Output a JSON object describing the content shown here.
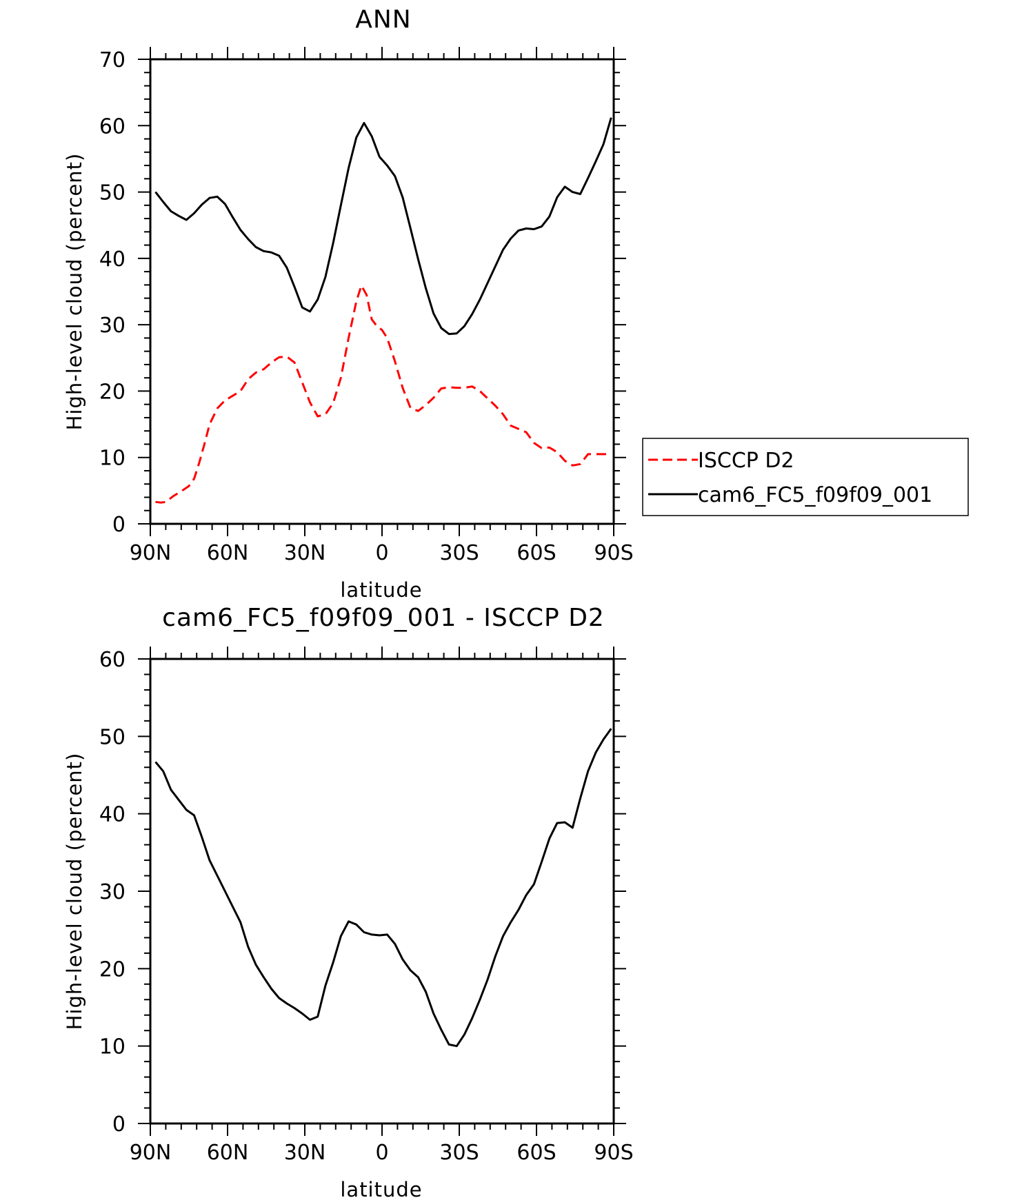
{
  "chart_data": [
    {
      "type": "line",
      "title": "ANN",
      "xlabel": "latitude",
      "ylabel": "High-level cloud (percent)",
      "xlim": [
        90,
        -90
      ],
      "ylim": [
        0,
        70
      ],
      "yticks": [
        0,
        10,
        20,
        30,
        40,
        50,
        60,
        70
      ],
      "xticks": [
        {
          "value": 90,
          "label": "90N"
        },
        {
          "value": 60,
          "label": "60N"
        },
        {
          "value": 30,
          "label": "30N"
        },
        {
          "value": 0,
          "label": "0"
        },
        {
          "value": -30,
          "label": "30S"
        },
        {
          "value": -60,
          "label": "60S"
        },
        {
          "value": -90,
          "label": "90S"
        }
      ],
      "legend": {
        "position": "right"
      },
      "series": [
        {
          "name": "ISCCP D2",
          "color": "#ff0000",
          "dash": "dashed",
          "x": [
            88,
            86,
            84,
            81,
            78,
            75,
            73,
            71,
            69,
            67,
            64,
            61,
            58,
            55,
            52,
            49,
            46,
            43,
            40,
            37,
            34,
            31,
            28,
            25,
            22,
            19,
            16,
            13,
            10,
            8,
            6,
            4,
            2,
            0,
            -2,
            -5,
            -8,
            -11,
            -14,
            -17,
            -20,
            -23,
            -26,
            -29,
            -32,
            -35,
            -38,
            -41,
            -44,
            -47,
            -50,
            -53,
            -56,
            -59,
            -62,
            -65,
            -68,
            -71,
            -74,
            -77,
            -80,
            -83,
            -85,
            -87,
            -89
          ],
          "y": [
            3.3,
            3.2,
            3.3,
            4.2,
            4.9,
            5.7,
            6.8,
            9.2,
            12.0,
            15.0,
            17.4,
            18.6,
            19.3,
            20.0,
            21.8,
            22.8,
            23.3,
            24.3,
            25.1,
            25.2,
            24.3,
            21.3,
            18.3,
            16.2,
            16.5,
            18.2,
            22.0,
            28.0,
            33.5,
            35.9,
            34.5,
            30.8,
            29.8,
            29.2,
            28.0,
            24.5,
            20.5,
            17.5,
            17.0,
            17.9,
            19.0,
            20.4,
            20.6,
            20.5,
            20.5,
            20.7,
            20.0,
            18.9,
            17.8,
            16.5,
            14.8,
            14.3,
            13.8,
            12.2,
            11.4,
            11.5,
            10.8,
            9.5,
            8.8,
            9.0,
            10.5,
            10.5,
            10.5,
            10.5,
            10.5
          ]
        },
        {
          "name": "cam6_FC5_f09f09_001",
          "color": "#000000",
          "dash": "solid",
          "x": [
            88,
            85,
            82,
            79,
            76,
            73,
            70,
            67,
            64,
            61,
            58,
            55,
            52,
            49,
            46,
            43,
            40,
            37,
            34,
            31,
            28,
            25,
            22,
            19,
            16,
            13,
            10,
            7,
            4,
            1,
            -2,
            -5,
            -8,
            -11,
            -14,
            -17,
            -20,
            -23,
            -26,
            -29,
            -32,
            -35,
            -38,
            -41,
            -44,
            -47,
            -50,
            -53,
            -56,
            -59,
            -62,
            -65,
            -68,
            -71,
            -74,
            -77,
            -80,
            -83,
            -86,
            -89
          ],
          "y": [
            50.0,
            48.5,
            47.1,
            46.4,
            45.8,
            46.8,
            48.1,
            49.1,
            49.3,
            48.2,
            46.2,
            44.3,
            42.9,
            41.7,
            41.1,
            40.9,
            40.4,
            38.6,
            35.7,
            32.6,
            32.0,
            33.8,
            37.2,
            42.3,
            48.0,
            53.6,
            58.2,
            60.4,
            58.4,
            55.3,
            54.0,
            52.4,
            49.2,
            44.6,
            39.9,
            35.5,
            31.7,
            29.5,
            28.6,
            28.7,
            29.8,
            31.6,
            33.8,
            36.3,
            38.8,
            41.3,
            43.0,
            44.2,
            44.5,
            44.4,
            44.8,
            46.3,
            49.2,
            50.8,
            50.0,
            49.7,
            52.1,
            54.6,
            57.2,
            61.2
          ]
        }
      ]
    },
    {
      "type": "line",
      "title": "cam6_FC5_f09f09_001 - ISCCP D2",
      "xlabel": "latitude",
      "ylabel": "High-level cloud (percent)",
      "xlim": [
        90,
        -90
      ],
      "ylim": [
        0,
        60
      ],
      "yticks": [
        0,
        10,
        20,
        30,
        40,
        50,
        60
      ],
      "xticks": [
        {
          "value": 90,
          "label": "90N"
        },
        {
          "value": 60,
          "label": "60N"
        },
        {
          "value": 30,
          "label": "30N"
        },
        {
          "value": 0,
          "label": "0"
        },
        {
          "value": -30,
          "label": "30S"
        },
        {
          "value": -60,
          "label": "60S"
        },
        {
          "value": -90,
          "label": "90S"
        }
      ],
      "series": [
        {
          "color": "#000000",
          "dash": "solid",
          "x": [
            88,
            85,
            82,
            79,
            76,
            73,
            70,
            67,
            64,
            61,
            58,
            55,
            52,
            49,
            46,
            43,
            40,
            37,
            34,
            31,
            28,
            25,
            22,
            19,
            16,
            13,
            10,
            7,
            4,
            1,
            -2,
            -5,
            -8,
            -11,
            -14,
            -17,
            -20,
            -23,
            -26,
            -29,
            -32,
            -35,
            -38,
            -41,
            -44,
            -47,
            -50,
            -53,
            -56,
            -59,
            -62,
            -65,
            -68,
            -71,
            -74,
            -77,
            -80,
            -83,
            -86,
            -89
          ],
          "y": [
            46.7,
            45.5,
            43.1,
            41.8,
            40.5,
            39.8,
            37.0,
            34.0,
            32.0,
            30.0,
            28.0,
            26.0,
            22.8,
            20.5,
            18.9,
            17.4,
            16.2,
            15.5,
            14.9,
            14.2,
            13.4,
            13.8,
            17.8,
            20.8,
            24.2,
            26.1,
            25.7,
            24.7,
            24.4,
            24.3,
            24.4,
            23.2,
            21.2,
            19.8,
            18.9,
            17.0,
            14.2,
            12.1,
            10.2,
            10.0,
            11.5,
            13.6,
            16.0,
            18.6,
            21.6,
            24.2,
            26.0,
            27.6,
            29.5,
            30.9,
            33.8,
            36.8,
            38.8,
            38.9,
            38.2,
            42.0,
            45.5,
            47.9,
            49.6,
            51.0
          ]
        }
      ]
    }
  ]
}
